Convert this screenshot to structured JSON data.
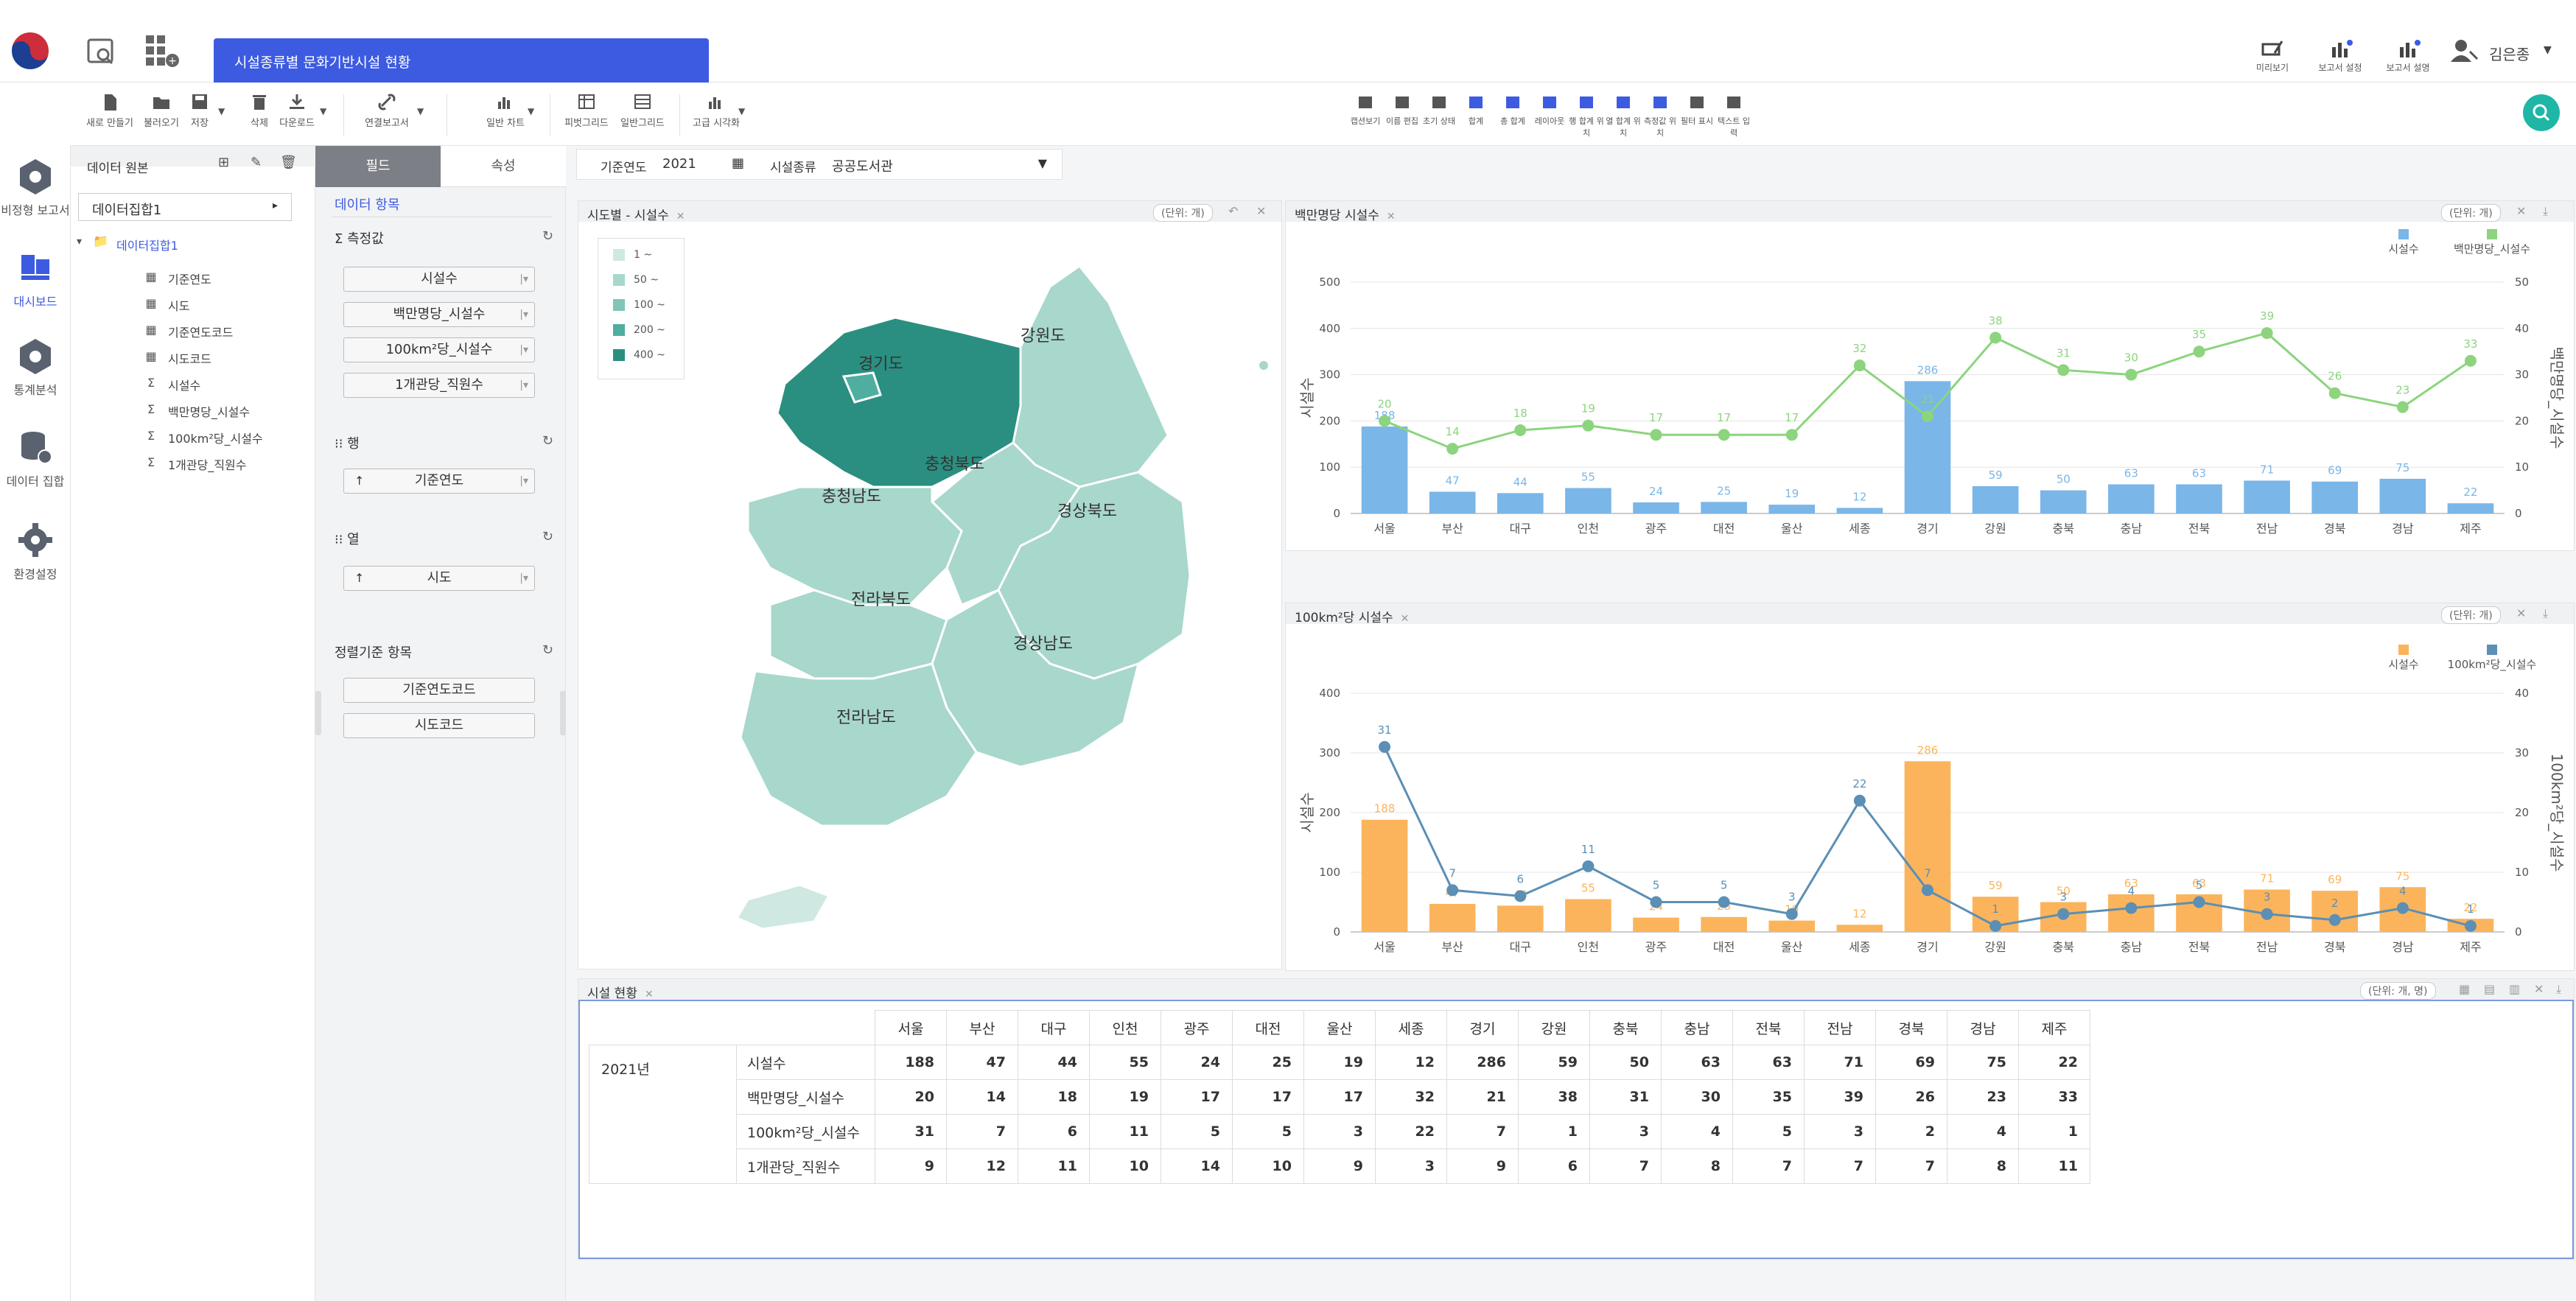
{
  "app": {
    "report_tab": "시설종류별 문화기반시설 현황",
    "top_actions": [
      "미리보기",
      "보고서 설정",
      "보고서 설명"
    ],
    "user_name": "김은종"
  },
  "toolbar": {
    "groups": [
      {
        "items": [
          "새로 만들기",
          "불러오기",
          "저장",
          "삭제",
          "다운로드"
        ]
      },
      {
        "items": [
          "연결보고서"
        ]
      },
      {
        "items": [
          "일반 차트"
        ]
      },
      {
        "items": [
          "피벗그리드",
          "일반그리드"
        ]
      },
      {
        "items": [
          "고급 시각화"
        ]
      }
    ],
    "right_items": [
      "캡션보기",
      "이름 편집",
      "초기 상태",
      "합계",
      "총 합계",
      "레이아웃",
      "행 합계 위치",
      "열 합계 위치",
      "측정값 위치",
      "필터 표시",
      "텍스트 입력"
    ]
  },
  "nav": [
    "비정형 보고서",
    "대시보드",
    "통계분석",
    "데이터 집합",
    "환경설정"
  ],
  "source_panel": {
    "title": "데이터 원본",
    "dataset": "데이터집합1",
    "folder": "데이터집합1",
    "items": [
      {
        "label": "기준연도",
        "icon": "dimension-icon"
      },
      {
        "label": "시도",
        "icon": "dimension-icon"
      },
      {
        "label": "기준연도코드",
        "icon": "dimension-icon"
      },
      {
        "label": "시도코드",
        "icon": "dimension-icon"
      },
      {
        "label": "시설수",
        "icon": "measure-icon"
      },
      {
        "label": "백만명당_시설수",
        "icon": "measure-icon"
      },
      {
        "label": "100km²당_시설수",
        "icon": "measure-icon"
      },
      {
        "label": "1개관당_직원수",
        "icon": "measure-icon"
      }
    ]
  },
  "field_panel": {
    "tabs": [
      "필드",
      "속성"
    ],
    "data_items": "데이터 항목",
    "measures_title": "측정값",
    "measures": [
      "시설수",
      "백만명당_시설수",
      "100km²당_시설수",
      "1개관당_직원수"
    ],
    "rows_title": "행",
    "rows": [
      "기준연도"
    ],
    "cols_title": "열",
    "cols": [
      "시도"
    ],
    "sort_title": "정렬기준 항목",
    "sorts": [
      "기준연도코드",
      "시도코드"
    ]
  },
  "filters": {
    "year_label": "기준연도",
    "year_value": "2021",
    "type_label": "시설종류",
    "type_value": "공공도서관"
  },
  "map_panel": {
    "title": "시도별 - 시설수",
    "unit": "(단위: 개)",
    "legend": [
      "1 ~",
      "50 ~",
      "100 ~",
      "200 ~",
      "400 ~"
    ],
    "legend_colors": [
      "#cfe8e2",
      "#a8d7cc",
      "#7fc5b8",
      "#4fae9f",
      "#2a8f80"
    ],
    "regions": [
      "강원도",
      "경기도",
      "충청북도",
      "충청남도",
      "경상북도",
      "전라북도",
      "경상남도",
      "전라남도"
    ]
  },
  "chart1": {
    "title": "백만명당 시설수",
    "unit": "(단위: 개)",
    "legend": [
      "시설수",
      "백만명당_시설수"
    ],
    "colors": {
      "bar": "#7ab6e8",
      "line": "#8cd47e"
    }
  },
  "chart2": {
    "title": "100km²당 시설수",
    "unit": "(단위: 개)",
    "legend": [
      "시설수",
      "100km²당_시설수"
    ],
    "colors": {
      "bar": "#fbb45c",
      "line": "#5b8fb5"
    }
  },
  "chart_data": [
    {
      "type": "bar",
      "categories": [
        "서울",
        "부산",
        "대구",
        "인천",
        "광주",
        "대전",
        "울산",
        "세종",
        "경기",
        "강원",
        "충북",
        "충남",
        "전북",
        "전남",
        "경북",
        "경남",
        "제주"
      ],
      "series": [
        {
          "name": "시설수",
          "type": "bar",
          "axis": "left",
          "values": [
            188,
            47,
            44,
            55,
            24,
            25,
            19,
            12,
            286,
            59,
            50,
            63,
            63,
            71,
            69,
            75,
            22
          ]
        },
        {
          "name": "백만명당_시설수",
          "type": "line",
          "axis": "right",
          "values": [
            20,
            14,
            18,
            19,
            17,
            17,
            17,
            32,
            21,
            38,
            31,
            30,
            35,
            39,
            26,
            23,
            33
          ]
        }
      ],
      "ylabel": "시설수",
      "y2label": "백만명당_시설수",
      "ylim": [
        0,
        500
      ],
      "y2lim": [
        0,
        50
      ],
      "yticks": [
        0,
        100,
        200,
        300,
        400,
        500
      ],
      "y2ticks": [
        0,
        10,
        20,
        30,
        40,
        50
      ]
    },
    {
      "type": "bar",
      "categories": [
        "서울",
        "부산",
        "대구",
        "인천",
        "광주",
        "대전",
        "울산",
        "세종",
        "경기",
        "강원",
        "충북",
        "충남",
        "전북",
        "전남",
        "경북",
        "경남",
        "제주"
      ],
      "series": [
        {
          "name": "시설수",
          "type": "bar",
          "axis": "left",
          "values": [
            188,
            47,
            44,
            55,
            24,
            25,
            19,
            12,
            286,
            59,
            50,
            63,
            63,
            71,
            69,
            75,
            22
          ]
        },
        {
          "name": "100km²당_시설수",
          "type": "line",
          "axis": "right",
          "values": [
            31,
            7,
            6,
            11,
            5,
            5,
            3,
            22,
            7,
            1,
            3,
            4,
            5,
            3,
            2,
            4,
            1
          ]
        }
      ],
      "ylabel": "시설수",
      "y2label": "100km²당_시설수",
      "ylim": [
        0,
        400
      ],
      "y2lim": [
        0,
        40
      ],
      "yticks": [
        0,
        100,
        200,
        300,
        400
      ],
      "y2ticks": [
        0,
        10,
        20,
        30,
        40
      ]
    }
  ],
  "table_panel": {
    "title": "시설 현황",
    "unit": "(단위: 개, 명)",
    "year": "2021년",
    "columns": [
      "서울",
      "부산",
      "대구",
      "인천",
      "광주",
      "대전",
      "울산",
      "세종",
      "경기",
      "강원",
      "충북",
      "충남",
      "전북",
      "전남",
      "경북",
      "경남",
      "제주"
    ],
    "rows": [
      {
        "label": "시설수",
        "values": [
          188,
          47,
          44,
          55,
          24,
          25,
          19,
          12,
          286,
          59,
          50,
          63,
          63,
          71,
          69,
          75,
          22
        ]
      },
      {
        "label": "백만명당_시설수",
        "values": [
          20,
          14,
          18,
          19,
          17,
          17,
          17,
          32,
          21,
          38,
          31,
          30,
          35,
          39,
          26,
          23,
          33
        ]
      },
      {
        "label": "100km²당_시설수",
        "values": [
          31,
          7,
          6,
          11,
          5,
          5,
          3,
          22,
          7,
          1,
          3,
          4,
          5,
          3,
          2,
          4,
          1
        ]
      },
      {
        "label": "1개관당_직원수",
        "values": [
          9,
          12,
          11,
          10,
          14,
          10,
          9,
          3,
          9,
          6,
          7,
          8,
          7,
          7,
          7,
          8,
          11
        ]
      }
    ]
  }
}
